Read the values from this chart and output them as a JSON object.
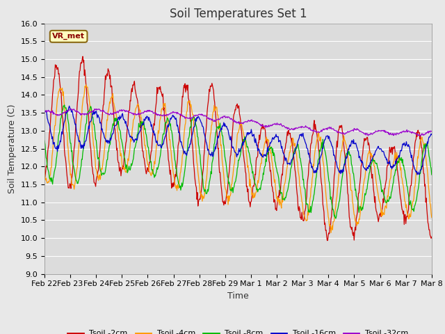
{
  "title": "Soil Temperatures Set 1",
  "xlabel": "Time",
  "ylabel": "Soil Temperature (C)",
  "ylim": [
    9.0,
    16.0
  ],
  "yticks": [
    9.0,
    9.5,
    10.0,
    10.5,
    11.0,
    11.5,
    12.0,
    12.5,
    13.0,
    13.5,
    14.0,
    14.5,
    15.0,
    15.5,
    16.0
  ],
  "xtick_labels": [
    "Feb 22",
    "Feb 23",
    "Feb 24",
    "Feb 25",
    "Feb 26",
    "Feb 27",
    "Feb 28",
    "Feb 29",
    "Mar 1",
    "Mar 2",
    "Mar 3",
    "Mar 4",
    "Mar 5",
    "Mar 6",
    "Mar 7",
    "Mar 8"
  ],
  "annotation": "VR_met",
  "colors": {
    "Tsoil -2cm": "#cc0000",
    "Tsoil -4cm": "#ff9900",
    "Tsoil -8cm": "#00bb00",
    "Tsoil -16cm": "#0000cc",
    "Tsoil -32cm": "#9900cc"
  },
  "background_color": "#dcdcdc",
  "grid_color": "#ffffff",
  "title_fontsize": 12,
  "tick_fontsize": 8,
  "label_fontsize": 9
}
